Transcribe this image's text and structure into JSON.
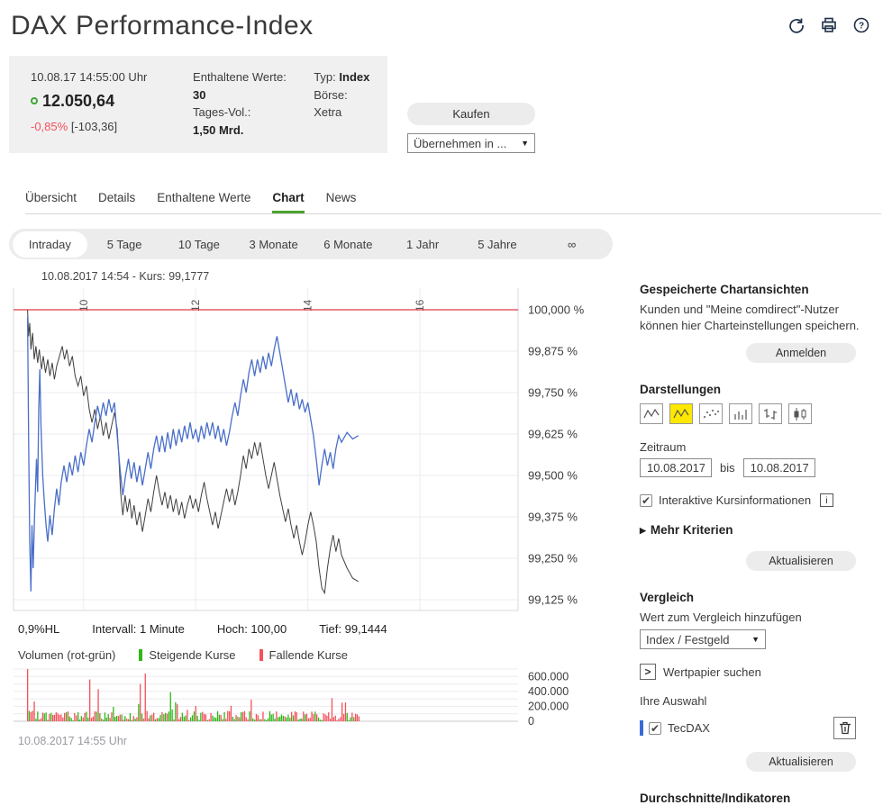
{
  "header": {
    "title": "DAX Performance-Index"
  },
  "quote": {
    "datetime": "10.08.17  14:55:00 Uhr",
    "price": "12.050,64",
    "change_pct": "-0,85%",
    "change_abs": "[-103,36]",
    "included_label": "Enthaltene Werte:",
    "included_value": "30",
    "volume_label": "Tages-Vol.:",
    "volume_value": "1,50 Mrd.",
    "type_label": "Typ:",
    "type_value": "Index",
    "exchange_label": "Börse:",
    "exchange_value": "Xetra"
  },
  "actions": {
    "buy_label": "Kaufen",
    "apply_dropdown": "Übernehmen in ..."
  },
  "tabs": {
    "items": [
      "Übersicht",
      "Details",
      "Enthaltene Werte",
      "Chart",
      "News"
    ],
    "active": "Chart"
  },
  "periods": {
    "items": [
      "Intraday",
      "5 Tage",
      "10 Tage",
      "3 Monate",
      "6 Monate",
      "1 Jahr",
      "5 Jahre",
      "∞"
    ],
    "active": "Intraday"
  },
  "chart": {
    "crosshair_info": "10.08.2017 14:54  -  Kurs: 99,1777",
    "stats": {
      "range": "0,9%HL",
      "interval": "Intervall: 1 Minute",
      "high": "Hoch:  100,00",
      "low": "Tief: 99,1444"
    },
    "footer_time": "10.08.2017 14:55 Uhr"
  },
  "volume_legend": {
    "title": "Volumen (rot-grün)",
    "up": "Steigende Kurse",
    "down": "Fallende Kurse"
  },
  "chart_data": {
    "type": "line",
    "title": "DAX Performance-Index Intraday 10.08.2017 (normiert in %)",
    "x_ticks": [
      10,
      12,
      14,
      16
    ],
    "x_tick_labels": [
      "10",
      "12",
      "14",
      "16"
    ],
    "x_range": [
      8.75,
      17.75
    ],
    "y_ticks": [
      100.0,
      99.875,
      99.75,
      99.625,
      99.5,
      99.375,
      99.25,
      99.125
    ],
    "y_tick_labels": [
      "100,000 %",
      "99,875 %",
      "99,750 %",
      "99,625 %",
      "99,500 %",
      "99,375 %",
      "99,250 %",
      "99,125 %"
    ],
    "baseline": {
      "value": 100.0,
      "color": "#e23b44"
    },
    "series": [
      {
        "name": "DAX",
        "color": "#3f3f3f",
        "width": 1,
        "points": [
          [
            9.0,
            100.0
          ],
          [
            9.02,
            99.92
          ],
          [
            9.04,
            99.96
          ],
          [
            9.06,
            99.88
          ],
          [
            9.09,
            99.93
          ],
          [
            9.12,
            99.85
          ],
          [
            9.15,
            99.89
          ],
          [
            9.18,
            99.84
          ],
          [
            9.21,
            99.88
          ],
          [
            9.25,
            99.82
          ],
          [
            9.28,
            99.86
          ],
          [
            9.32,
            99.81
          ],
          [
            9.36,
            99.85
          ],
          [
            9.4,
            99.8
          ],
          [
            9.44,
            99.84
          ],
          [
            9.48,
            99.79
          ],
          [
            9.52,
            99.83
          ],
          [
            9.57,
            99.86
          ],
          [
            9.62,
            99.89
          ],
          [
            9.66,
            99.85
          ],
          [
            9.7,
            99.88
          ],
          [
            9.75,
            99.83
          ],
          [
            9.8,
            99.86
          ],
          [
            9.85,
            99.8
          ],
          [
            9.9,
            99.77
          ],
          [
            9.95,
            99.8
          ],
          [
            10.0,
            99.74
          ],
          [
            10.05,
            99.77
          ],
          [
            10.1,
            99.7
          ],
          [
            10.15,
            99.66
          ],
          [
            10.2,
            99.7
          ],
          [
            10.25,
            99.64
          ],
          [
            10.3,
            99.68
          ],
          [
            10.35,
            99.62
          ],
          [
            10.4,
            99.66
          ],
          [
            10.45,
            99.61
          ],
          [
            10.5,
            99.65
          ],
          [
            10.55,
            99.69
          ],
          [
            10.6,
            99.64
          ],
          [
            10.63,
            99.55
          ],
          [
            10.66,
            99.45
          ],
          [
            10.7,
            99.38
          ],
          [
            10.74,
            99.44
          ],
          [
            10.78,
            99.39
          ],
          [
            10.82,
            99.43
          ],
          [
            10.86,
            99.37
          ],
          [
            10.9,
            99.41
          ],
          [
            10.95,
            99.35
          ],
          [
            11.0,
            99.39
          ],
          [
            11.05,
            99.33
          ],
          [
            11.1,
            99.38
          ],
          [
            11.15,
            99.43
          ],
          [
            11.2,
            99.39
          ],
          [
            11.25,
            99.45
          ],
          [
            11.3,
            99.5
          ],
          [
            11.35,
            99.45
          ],
          [
            11.4,
            99.41
          ],
          [
            11.45,
            99.45
          ],
          [
            11.5,
            99.4
          ],
          [
            11.55,
            99.44
          ],
          [
            11.6,
            99.39
          ],
          [
            11.65,
            99.43
          ],
          [
            11.7,
            99.38
          ],
          [
            11.75,
            99.42
          ],
          [
            11.8,
            99.37
          ],
          [
            11.85,
            99.41
          ],
          [
            11.9,
            99.44
          ],
          [
            11.95,
            99.4
          ],
          [
            12.0,
            99.43
          ],
          [
            12.05,
            99.39
          ],
          [
            12.1,
            99.44
          ],
          [
            12.15,
            99.48
          ],
          [
            12.2,
            99.43
          ],
          [
            12.25,
            99.39
          ],
          [
            12.3,
            99.35
          ],
          [
            12.35,
            99.39
          ],
          [
            12.4,
            99.34
          ],
          [
            12.45,
            99.38
          ],
          [
            12.5,
            99.42
          ],
          [
            12.55,
            99.46
          ],
          [
            12.6,
            99.42
          ],
          [
            12.65,
            99.46
          ],
          [
            12.7,
            99.41
          ],
          [
            12.75,
            99.45
          ],
          [
            12.8,
            99.5
          ],
          [
            12.85,
            99.56
          ],
          [
            12.9,
            99.52
          ],
          [
            12.95,
            99.58
          ],
          [
            13.0,
            99.55
          ],
          [
            13.05,
            99.6
          ],
          [
            13.1,
            99.56
          ],
          [
            13.15,
            99.6
          ],
          [
            13.2,
            99.55
          ],
          [
            13.25,
            99.5
          ],
          [
            13.3,
            99.46
          ],
          [
            13.35,
            99.5
          ],
          [
            13.4,
            99.54
          ],
          [
            13.45,
            99.49
          ],
          [
            13.5,
            99.44
          ],
          [
            13.55,
            99.4
          ],
          [
            13.6,
            99.36
          ],
          [
            13.65,
            99.4
          ],
          [
            13.7,
            99.35
          ],
          [
            13.75,
            99.31
          ],
          [
            13.8,
            99.35
          ],
          [
            13.85,
            99.3
          ],
          [
            13.9,
            99.26
          ],
          [
            13.95,
            99.3
          ],
          [
            14.0,
            99.35
          ],
          [
            14.05,
            99.39
          ],
          [
            14.1,
            99.35
          ],
          [
            14.15,
            99.3
          ],
          [
            14.2,
            99.22
          ],
          [
            14.25,
            99.16
          ],
          [
            14.3,
            99.145
          ],
          [
            14.35,
            99.22
          ],
          [
            14.4,
            99.28
          ],
          [
            14.45,
            99.32
          ],
          [
            14.5,
            99.27
          ],
          [
            14.55,
            99.31
          ],
          [
            14.6,
            99.26
          ],
          [
            14.7,
            99.22
          ],
          [
            14.8,
            99.19
          ],
          [
            14.9,
            99.18
          ]
        ]
      },
      {
        "name": "TecDAX",
        "color": "#4a6fc9",
        "width": 1.3,
        "points": [
          [
            9.0,
            99.98
          ],
          [
            9.02,
            99.6
          ],
          [
            9.04,
            99.3
          ],
          [
            9.06,
            99.15
          ],
          [
            9.08,
            99.35
          ],
          [
            9.1,
            99.22
          ],
          [
            9.13,
            99.4
          ],
          [
            9.16,
            99.55
          ],
          [
            9.18,
            99.45
          ],
          [
            9.2,
            99.7
          ],
          [
            9.22,
            99.82
          ],
          [
            9.24,
            99.65
          ],
          [
            9.27,
            99.5
          ],
          [
            9.3,
            99.42
          ],
          [
            9.33,
            99.35
          ],
          [
            9.36,
            99.3
          ],
          [
            9.4,
            99.38
          ],
          [
            9.44,
            99.32
          ],
          [
            9.48,
            99.4
          ],
          [
            9.52,
            99.46
          ],
          [
            9.56,
            99.41
          ],
          [
            9.6,
            99.48
          ],
          [
            9.65,
            99.53
          ],
          [
            9.7,
            99.48
          ],
          [
            9.75,
            99.54
          ],
          [
            9.8,
            99.5
          ],
          [
            9.85,
            99.56
          ],
          [
            9.9,
            99.51
          ],
          [
            9.95,
            99.57
          ],
          [
            10.0,
            99.53
          ],
          [
            10.05,
            99.59
          ],
          [
            10.1,
            99.64
          ],
          [
            10.15,
            99.6
          ],
          [
            10.2,
            99.66
          ],
          [
            10.25,
            99.71
          ],
          [
            10.3,
            99.67
          ],
          [
            10.35,
            99.72
          ],
          [
            10.4,
            99.68
          ],
          [
            10.45,
            99.73
          ],
          [
            10.5,
            99.69
          ],
          [
            10.55,
            99.72
          ],
          [
            10.6,
            99.62
          ],
          [
            10.65,
            99.52
          ],
          [
            10.7,
            99.44
          ],
          [
            10.75,
            99.5
          ],
          [
            10.8,
            99.55
          ],
          [
            10.85,
            99.49
          ],
          [
            10.9,
            99.54
          ],
          [
            10.95,
            99.48
          ],
          [
            11.0,
            99.53
          ],
          [
            11.05,
            99.47
          ],
          [
            11.1,
            99.52
          ],
          [
            11.15,
            99.57
          ],
          [
            11.2,
            99.52
          ],
          [
            11.25,
            99.58
          ],
          [
            11.3,
            99.62
          ],
          [
            11.35,
            99.57
          ],
          [
            11.4,
            99.62
          ],
          [
            11.45,
            99.57
          ],
          [
            11.5,
            99.63
          ],
          [
            11.55,
            99.58
          ],
          [
            11.6,
            99.64
          ],
          [
            11.65,
            99.59
          ],
          [
            11.7,
            99.64
          ],
          [
            11.75,
            99.6
          ],
          [
            11.8,
            99.65
          ],
          [
            11.85,
            99.61
          ],
          [
            11.9,
            99.66
          ],
          [
            11.95,
            99.61
          ],
          [
            12.0,
            99.64
          ],
          [
            12.05,
            99.6
          ],
          [
            12.1,
            99.65
          ],
          [
            12.15,
            99.61
          ],
          [
            12.2,
            99.66
          ],
          [
            12.25,
            99.62
          ],
          [
            12.3,
            99.66
          ],
          [
            12.35,
            99.61
          ],
          [
            12.4,
            99.65
          ],
          [
            12.45,
            99.6
          ],
          [
            12.5,
            99.64
          ],
          [
            12.55,
            99.59
          ],
          [
            12.6,
            99.63
          ],
          [
            12.65,
            99.68
          ],
          [
            12.7,
            99.72
          ],
          [
            12.75,
            99.68
          ],
          [
            12.8,
            99.74
          ],
          [
            12.85,
            99.79
          ],
          [
            12.9,
            99.75
          ],
          [
            12.95,
            99.81
          ],
          [
            13.0,
            99.85
          ],
          [
            13.05,
            99.8
          ],
          [
            13.1,
            99.85
          ],
          [
            13.15,
            99.81
          ],
          [
            13.2,
            99.86
          ],
          [
            13.25,
            99.82
          ],
          [
            13.3,
            99.87
          ],
          [
            13.35,
            99.83
          ],
          [
            13.4,
            99.88
          ],
          [
            13.45,
            99.92
          ],
          [
            13.5,
            99.87
          ],
          [
            13.55,
            99.82
          ],
          [
            13.6,
            99.77
          ],
          [
            13.65,
            99.72
          ],
          [
            13.7,
            99.76
          ],
          [
            13.75,
            99.71
          ],
          [
            13.8,
            99.75
          ],
          [
            13.85,
            99.7
          ],
          [
            13.9,
            99.73
          ],
          [
            13.95,
            99.69
          ],
          [
            14.0,
            99.72
          ],
          [
            14.05,
            99.67
          ],
          [
            14.1,
            99.62
          ],
          [
            14.15,
            99.55
          ],
          [
            14.2,
            99.47
          ],
          [
            14.25,
            99.53
          ],
          [
            14.3,
            99.58
          ],
          [
            14.35,
            99.53
          ],
          [
            14.4,
            99.57
          ],
          [
            14.45,
            99.52
          ],
          [
            14.5,
            99.58
          ],
          [
            14.55,
            99.62
          ],
          [
            14.6,
            99.6
          ],
          [
            14.7,
            99.63
          ],
          [
            14.8,
            99.61
          ],
          [
            14.9,
            99.62
          ]
        ]
      }
    ],
    "volume": {
      "y_ticks": [
        600000,
        400000,
        200000,
        0
      ],
      "y_tick_labels": [
        "600.000",
        "400.000",
        "200.000",
        "0"
      ],
      "y_max": 700000,
      "t_start": 9.0,
      "t_end": 14.92,
      "base_min": 15000,
      "base_max": 140000,
      "spikes": [
        {
          "t": 9.0,
          "v": 700000,
          "dir": "down"
        },
        {
          "t": 10.12,
          "v": 560000,
          "dir": "down"
        },
        {
          "t": 10.26,
          "v": 430000,
          "dir": "down"
        },
        {
          "t": 11.02,
          "v": 500000,
          "dir": "down"
        },
        {
          "t": 11.1,
          "v": 640000,
          "dir": "down"
        },
        {
          "t": 11.56,
          "v": 390000,
          "dir": "up"
        },
        {
          "t": 12.98,
          "v": 290000,
          "dir": "down"
        },
        {
          "t": 14.42,
          "v": 310000,
          "dir": "down"
        },
        {
          "t": 14.6,
          "v": 250000,
          "dir": "down"
        }
      ],
      "colors": {
        "up": "#2fb816",
        "down": "#f4515c"
      }
    }
  },
  "sidebar": {
    "saved_views": {
      "title": "Gespeicherte Chartansichten",
      "text": "Kunden und \"Meine comdirect\"-Nutzer können hier Charteinstellungen speichern.",
      "button": "Anmelden"
    },
    "representations": {
      "title": "Darstellungen",
      "selected_color": "#ffe800"
    },
    "zeitraum": {
      "label": "Zeitraum",
      "from": "10.08.2017",
      "bis_label": "bis",
      "to": "10.08.2017"
    },
    "interactive": {
      "label": "Interaktive Kursinformationen",
      "check": "✔",
      "info": "i"
    },
    "more_criteria": "Mehr Kriterien",
    "refresh_button": "Aktualisieren",
    "comparison": {
      "title": "Vergleich",
      "add_label": "Wert zum Vergleich hinzufügen",
      "dropdown": "Index / Festgeld",
      "search_label": "Wertpapier suchen",
      "selection_label": "Ihre Auswahl",
      "item": {
        "name": "TecDAX",
        "check": "✔",
        "color": "#3b6bd6"
      },
      "refresh_button": "Aktualisieren"
    },
    "indicators_title": "Durchschnitte/Indikatoren"
  }
}
